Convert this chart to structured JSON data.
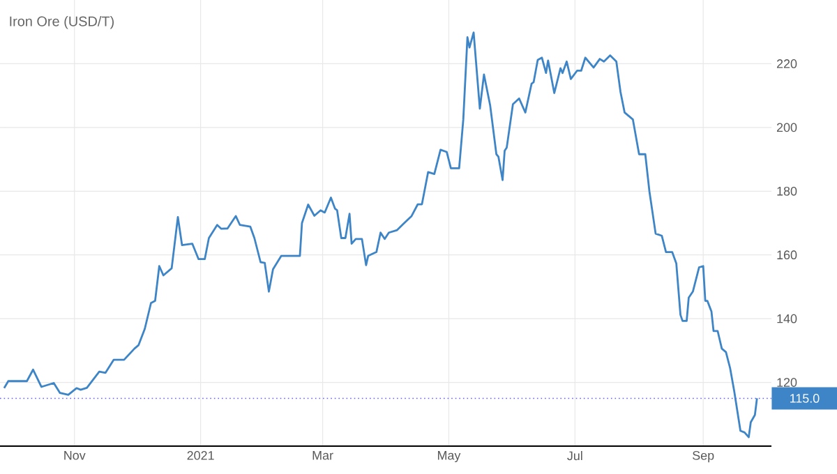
{
  "chart_data": {
    "type": "line",
    "title": "Iron Ore (USD/T)",
    "x": [
      "2020-09-28",
      "2020-09-30",
      "2020-10-09",
      "2020-10-12",
      "2020-10-16",
      "2020-10-22",
      "2020-10-25",
      "2020-10-29",
      "2020-11-02",
      "2020-11-04",
      "2020-11-07",
      "2020-11-13",
      "2020-11-16",
      "2020-11-20",
      "2020-11-25",
      "2020-11-30",
      "2020-12-02",
      "2020-12-05",
      "2020-12-08",
      "2020-12-10",
      "2020-12-12",
      "2020-12-14",
      "2020-12-18",
      "2020-12-21",
      "2020-12-23",
      "2020-12-28",
      "2020-12-31",
      "2021-01-03",
      "2021-01-05",
      "2021-01-09",
      "2021-01-11",
      "2021-01-14",
      "2021-01-18",
      "2021-01-20",
      "2021-01-25",
      "2021-01-27",
      "2021-01-30",
      "2021-02-01",
      "2021-02-03",
      "2021-02-05",
      "2021-02-09",
      "2021-02-18",
      "2021-02-19",
      "2021-02-22",
      "2021-02-25",
      "2021-02-28",
      "2021-03-02",
      "2021-03-05",
      "2021-03-07",
      "2021-03-08",
      "2021-03-10",
      "2021-03-12",
      "2021-03-14",
      "2021-03-15",
      "2021-03-17",
      "2021-03-20",
      "2021-03-22",
      "2021-03-23",
      "2021-03-27",
      "2021-03-29",
      "2021-03-31",
      "2021-04-02",
      "2021-04-06",
      "2021-04-09",
      "2021-04-13",
      "2021-04-16",
      "2021-04-18",
      "2021-04-21",
      "2021-04-24",
      "2021-04-27",
      "2021-04-30",
      "2021-05-02",
      "2021-05-06",
      "2021-05-08",
      "2021-05-10",
      "2021-05-11",
      "2021-05-13",
      "2021-05-16",
      "2021-05-18",
      "2021-05-21",
      "2021-05-24",
      "2021-05-25",
      "2021-05-27",
      "2021-05-28",
      "2021-05-29",
      "2021-06-01",
      "2021-06-04",
      "2021-06-07",
      "2021-06-10",
      "2021-06-11",
      "2021-06-13",
      "2021-06-15",
      "2021-06-17",
      "2021-06-18",
      "2021-06-21",
      "2021-06-24",
      "2021-06-25",
      "2021-06-27",
      "2021-06-29",
      "2021-07-02",
      "2021-07-04",
      "2021-07-06",
      "2021-07-10",
      "2021-07-13",
      "2021-07-15",
      "2021-07-18",
      "2021-07-21",
      "2021-07-23",
      "2021-07-25",
      "2021-07-29",
      "2021-08-01",
      "2021-08-04",
      "2021-08-06",
      "2021-08-09",
      "2021-08-12",
      "2021-08-14",
      "2021-08-17",
      "2021-08-19",
      "2021-08-21",
      "2021-08-22",
      "2021-08-24",
      "2021-08-25",
      "2021-08-27",
      "2021-08-30",
      "2021-09-01",
      "2021-09-02",
      "2021-09-03",
      "2021-09-05",
      "2021-09-06",
      "2021-09-08",
      "2021-09-10",
      "2021-09-12",
      "2021-09-14",
      "2021-09-16",
      "2021-09-19",
      "2021-09-21",
      "2021-09-23",
      "2021-09-24",
      "2021-09-26",
      "2021-09-27"
    ],
    "series": [
      {
        "color": "#3d85c6",
        "values": [
          118.2,
          120.4,
          120.4,
          124.0,
          118.6,
          119.8,
          116.7,
          116.1,
          118.2,
          117.7,
          118.3,
          123.4,
          123.0,
          127.1,
          127.1,
          130.6,
          131.7,
          136.8,
          144.9,
          145.6,
          156.5,
          153.6,
          155.8,
          171.9,
          163.1,
          163.5,
          158.7,
          158.7,
          165.3,
          169.4,
          168.2,
          168.3,
          172.2,
          169.4,
          168.9,
          165.3,
          157.7,
          157.5,
          148.5,
          155.5,
          159.7,
          159.7,
          170.0,
          175.8,
          172.3,
          174.0,
          173.3,
          178.0,
          174.5,
          174.0,
          165.3,
          165.3,
          172.9,
          163.5,
          165.0,
          165.0,
          156.8,
          159.7,
          160.9,
          167.0,
          165.0,
          167.0,
          167.8,
          169.7,
          172.2,
          175.9,
          175.9,
          186.0,
          185.4,
          193.0,
          192.3,
          187.2,
          187.2,
          202.5,
          228.3,
          225.1,
          229.8,
          205.9,
          216.6,
          206.9,
          191.6,
          190.8,
          183.5,
          192.7,
          193.7,
          207.3,
          209.1,
          204.7,
          213.7,
          214.2,
          221.2,
          221.9,
          217.1,
          221.0,
          210.8,
          218.6,
          217.1,
          220.7,
          215.2,
          217.8,
          217.8,
          221.9,
          218.8,
          221.5,
          220.7,
          222.6,
          220.7,
          211.2,
          204.7,
          202.5,
          191.6,
          191.6,
          179.9,
          166.7,
          166.0,
          160.9,
          160.9,
          157.3,
          141.2,
          139.3,
          139.3,
          146.6,
          148.5,
          156.1,
          156.5,
          145.6,
          145.6,
          142.2,
          136.1,
          136.1,
          130.6,
          129.5,
          124.5,
          117.2,
          104.8,
          104.3,
          102.8,
          107.5,
          109.8,
          115.0
        ]
      }
    ],
    "xlim": [
      "2020-09-26",
      "2021-10-04"
    ],
    "xticks": [
      {
        "value": "2020-11-01",
        "label": "Nov"
      },
      {
        "value": "2021-01-01",
        "label": "2021"
      },
      {
        "value": "2021-03-01",
        "label": "Mar"
      },
      {
        "value": "2021-05-01",
        "label": "May"
      },
      {
        "value": "2021-07-01",
        "label": "Jul"
      },
      {
        "value": "2021-09-01",
        "label": "Sep"
      }
    ],
    "ylim": [
      100,
      240
    ],
    "yticks": [
      120,
      140,
      160,
      180,
      200,
      220
    ],
    "grid": true,
    "marker": "none",
    "line_style": "solid",
    "ref_lines": [
      {
        "axis": "y",
        "value": 115,
        "label": "115.0",
        "color": "#6060ff",
        "line_style": "dotted"
      }
    ]
  }
}
